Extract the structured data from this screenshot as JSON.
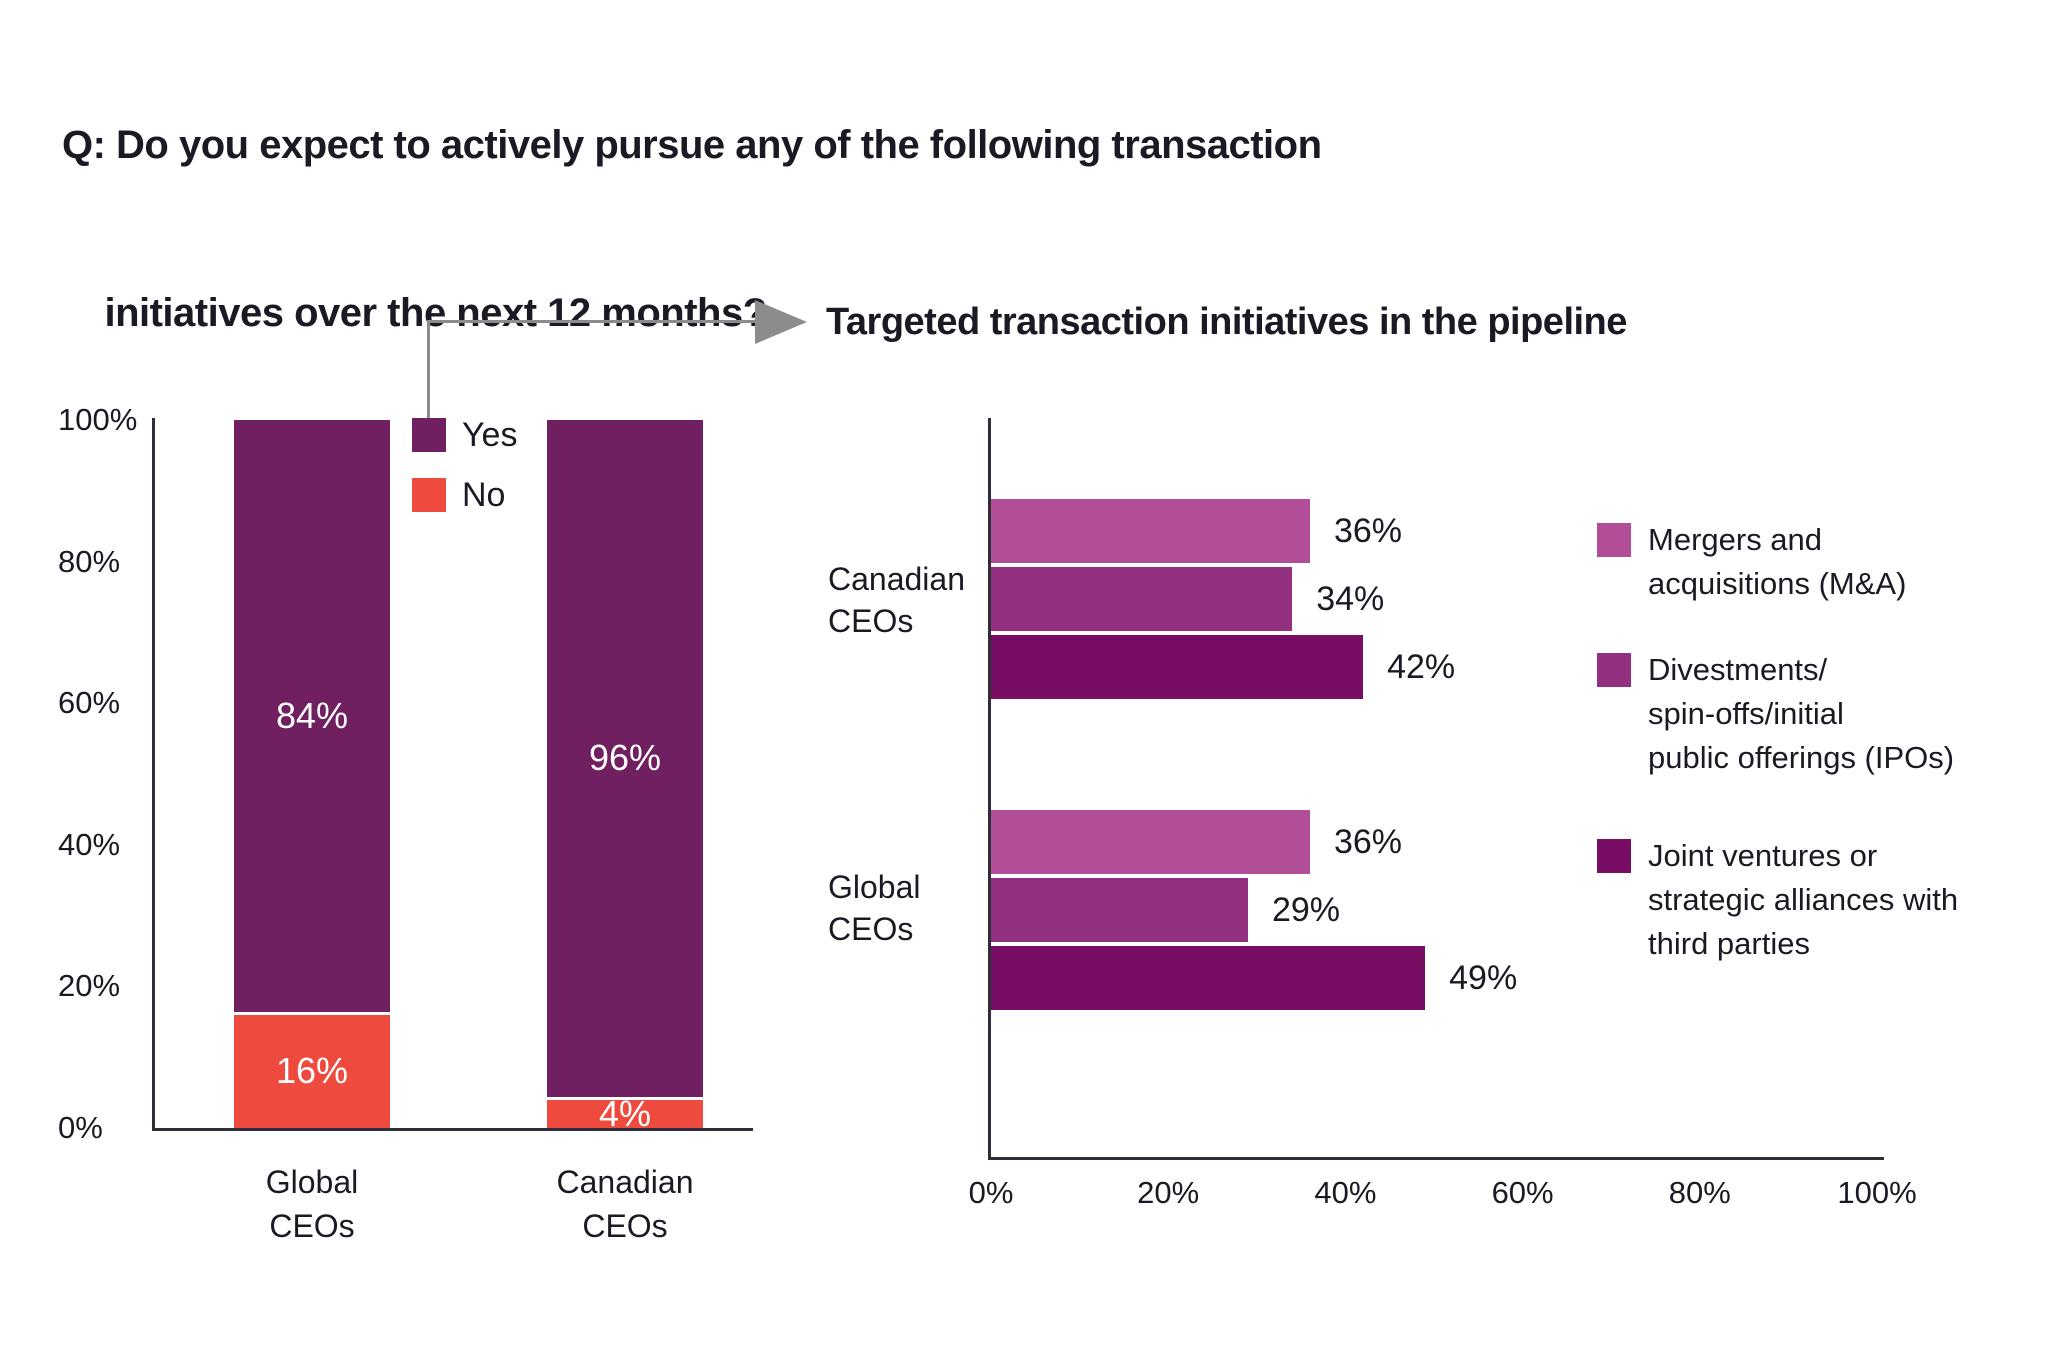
{
  "title_lines": [
    "Q: Do you expect to actively pursue any of the following transaction",
    "initiatives over the next 12 months?"
  ],
  "colors": {
    "yes_purple": "#702060",
    "no_red": "#EE4B3E",
    "mna_light_magenta": "#B24E98",
    "divestments_magenta": "#92307F",
    "jv_dark_purple": "#770E64",
    "axis": "#2E2E38",
    "text": "#1A1A24",
    "connector_gray": "#8C8C8C",
    "bar_value_text": "#FFFFFF"
  },
  "chart_data": [
    {
      "type": "bar",
      "subtype": "stacked-vertical",
      "title": "",
      "categories": [
        "Global CEOs",
        "Canadian CEOs"
      ],
      "category_lines": [
        [
          "Global",
          "CEOs"
        ],
        [
          "Canadian",
          "CEOs"
        ]
      ],
      "series": [
        {
          "name": "Yes",
          "color_key": "yes_purple",
          "values": [
            84,
            96
          ]
        },
        {
          "name": "No",
          "color_key": "no_red",
          "values": [
            16,
            4
          ]
        }
      ],
      "value_label_format": "percent",
      "ylim": [
        0,
        100
      ],
      "y_ticks": [
        "0%",
        "20%",
        "40%",
        "60%",
        "80%",
        "100%"
      ],
      "grid": "off",
      "legend_position": "inside-top-between-bars"
    },
    {
      "type": "bar",
      "subtype": "grouped-horizontal",
      "title": "Targeted transaction initiatives in the pipeline",
      "categories": [
        "Canadian CEOs",
        "Global CEOs"
      ],
      "category_lines": [
        [
          "Canadian",
          "CEOs"
        ],
        [
          "Global",
          "CEOs"
        ]
      ],
      "series": [
        {
          "name": "Mergers and acquisitions (M&A)",
          "legend_lines": [
            "Mergers and",
            "acquisitions (M&A)"
          ],
          "color_key": "mna_light_magenta",
          "values": [
            36,
            36
          ]
        },
        {
          "name": "Divestments/spin-offs/initial public offerings (IPOs)",
          "legend_lines": [
            "Divestments/",
            "spin-offs/initial",
            "public offerings (IPOs)"
          ],
          "color_key": "divestments_magenta",
          "values": [
            34,
            29
          ]
        },
        {
          "name": "Joint ventures or strategic alliances with third parties",
          "legend_lines": [
            "Joint ventures or",
            "strategic alliances with",
            "third parties"
          ],
          "color_key": "jv_dark_purple",
          "values": [
            42,
            49
          ]
        }
      ],
      "value_label_format": "percent",
      "xlim": [
        0,
        100
      ],
      "x_ticks": [
        "0%",
        "20%",
        "40%",
        "60%",
        "80%",
        "100%"
      ],
      "grid": "off",
      "legend_position": "right"
    }
  ]
}
